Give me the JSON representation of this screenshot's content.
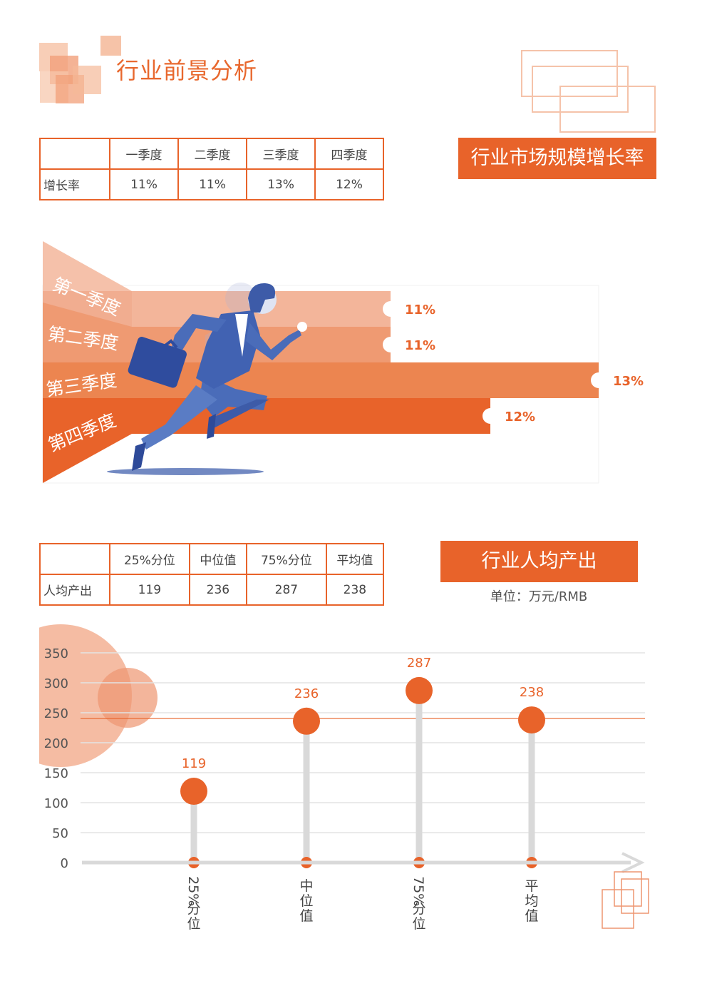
{
  "page_title": "行业前景分析",
  "growth_section": {
    "title": "行业市场规模增长率",
    "table": {
      "headers": [
        "一季度",
        "二季度",
        "三季度",
        "四季度"
      ],
      "row_label": "增长率",
      "values": [
        "11%",
        "11%",
        "13%",
        "12%"
      ]
    }
  },
  "output_section": {
    "title": "行业人均产出",
    "unit": "单位：万元/RMB",
    "table": {
      "headers": [
        "25%分位",
        "中位值",
        "75%分位",
        "平均值"
      ],
      "row_label": "人均产出",
      "values": [
        "119",
        "236",
        "287",
        "238"
      ]
    }
  },
  "chart_data": [
    {
      "type": "bar",
      "orientation": "horizontal",
      "categories": [
        "第一季度",
        "第二季度",
        "第三季度",
        "第四季度"
      ],
      "values": [
        11,
        11,
        13,
        12
      ],
      "value_labels": [
        "11%",
        "11%",
        "13%",
        "12%"
      ],
      "colors": [
        "#f3b59a",
        "#ef9a72",
        "#ec8550",
        "#e8632a"
      ]
    },
    {
      "type": "lollipop",
      "categories": [
        "25%\n分位",
        "中\n位\n值",
        "75%\n分位",
        "平\n均\n值"
      ],
      "values": [
        119,
        236,
        287,
        238
      ],
      "value_labels": [
        "119",
        "236",
        "287",
        "238"
      ],
      "yticks": [
        "0",
        "50",
        "100",
        "150",
        "200",
        "250",
        "300",
        "350"
      ],
      "ylim": [
        0,
        350
      ],
      "reference_line": 238,
      "grid": true,
      "accent": "#e8632a"
    }
  ]
}
